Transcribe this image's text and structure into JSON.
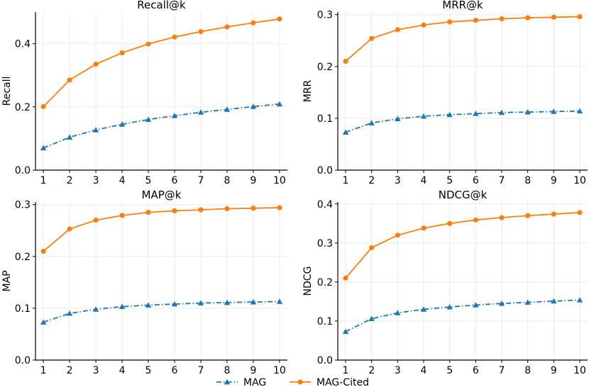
{
  "colors": {
    "mag": "#1f77b4",
    "mag_cited": "#ff7f0e",
    "grid": "#ebebeb",
    "axis": "#000000"
  },
  "legend": {
    "placement": "bottom-center",
    "items": [
      {
        "label": "MAG",
        "marker": "triangle",
        "style": "dashdot",
        "color": "#1f77b4"
      },
      {
        "label": "MAG-Cited",
        "marker": "circle",
        "style": "solid",
        "color": "#ff7f0e"
      }
    ]
  },
  "chart_data": [
    {
      "type": "line",
      "title": "Recall@k",
      "xlabel": "",
      "ylabel": "Recall",
      "x": [
        1,
        2,
        3,
        4,
        5,
        6,
        7,
        8,
        9,
        10
      ],
      "ylim": [
        0,
        0.5
      ],
      "yticks": [
        0.0,
        0.2,
        0.4
      ],
      "ytick_labels": [
        "0.0",
        "0.2",
        "0.4"
      ],
      "grid": true,
      "series": [
        {
          "name": "MAG",
          "values": [
            0.07,
            0.104,
            0.127,
            0.145,
            0.16,
            0.172,
            0.183,
            0.192,
            0.201,
            0.209
          ]
        },
        {
          "name": "MAG-Cited",
          "values": [
            0.201,
            0.285,
            0.335,
            0.371,
            0.399,
            0.421,
            0.438,
            0.453,
            0.466,
            0.478
          ]
        }
      ]
    },
    {
      "type": "line",
      "title": "MRR@k",
      "xlabel": "",
      "ylabel": "MRR",
      "x": [
        1,
        2,
        3,
        4,
        5,
        6,
        7,
        8,
        9,
        10
      ],
      "ylim": [
        0,
        0.305
      ],
      "yticks": [
        0.0,
        0.1,
        0.2,
        0.3
      ],
      "ytick_labels": [
        "0.0",
        "0.1",
        "0.2",
        "0.3"
      ],
      "grid": true,
      "series": [
        {
          "name": "MAG",
          "values": [
            0.073,
            0.091,
            0.099,
            0.104,
            0.107,
            0.109,
            0.111,
            0.112,
            0.113,
            0.114
          ]
        },
        {
          "name": "MAG-Cited",
          "values": [
            0.21,
            0.254,
            0.271,
            0.28,
            0.286,
            0.289,
            0.292,
            0.294,
            0.295,
            0.296
          ]
        }
      ]
    },
    {
      "type": "line",
      "title": "MAP@k",
      "xlabel": "",
      "ylabel": "MAP",
      "x": [
        1,
        2,
        3,
        4,
        5,
        6,
        7,
        8,
        9,
        10
      ],
      "ylim": [
        0,
        0.305
      ],
      "yticks": [
        0.0,
        0.1,
        0.2,
        0.3
      ],
      "ytick_labels": [
        "0.0",
        "0.1",
        "0.2",
        "0.3"
      ],
      "grid": true,
      "series": [
        {
          "name": "MAG",
          "values": [
            0.073,
            0.09,
            0.098,
            0.103,
            0.106,
            0.108,
            0.11,
            0.111,
            0.112,
            0.113
          ]
        },
        {
          "name": "MAG-Cited",
          "values": [
            0.21,
            0.253,
            0.27,
            0.279,
            0.285,
            0.288,
            0.29,
            0.292,
            0.293,
            0.294
          ]
        }
      ]
    },
    {
      "type": "line",
      "title": "NDCG@k",
      "xlabel": "",
      "ylabel": "NDCG",
      "x": [
        1,
        2,
        3,
        4,
        5,
        6,
        7,
        8,
        9,
        10
      ],
      "ylim": [
        0,
        0.405
      ],
      "yticks": [
        0.0,
        0.1,
        0.2,
        0.3,
        0.4
      ],
      "ytick_labels": [
        "0.0",
        "0.1",
        "0.2",
        "0.3",
        "0.4"
      ],
      "grid": true,
      "series": [
        {
          "name": "MAG",
          "values": [
            0.073,
            0.106,
            0.121,
            0.13,
            0.136,
            0.141,
            0.145,
            0.148,
            0.151,
            0.154
          ]
        },
        {
          "name": "MAG-Cited",
          "values": [
            0.21,
            0.288,
            0.32,
            0.338,
            0.35,
            0.359,
            0.365,
            0.37,
            0.374,
            0.378
          ]
        }
      ]
    }
  ]
}
